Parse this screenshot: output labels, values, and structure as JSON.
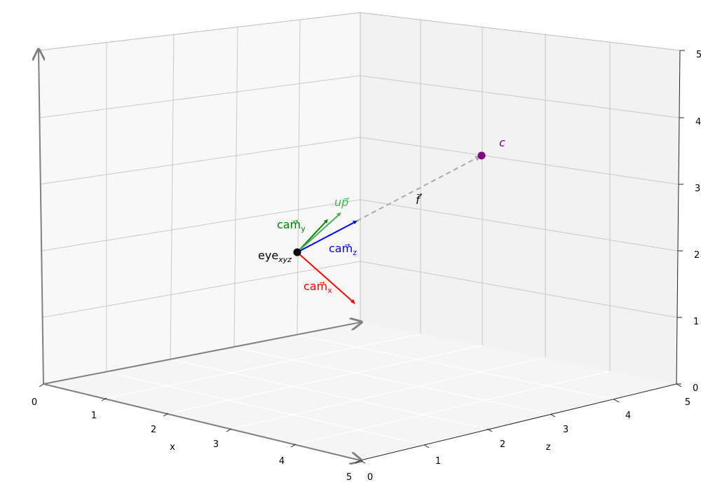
{
  "axes": {
    "x": {
      "name": "x",
      "ticks": [
        "0",
        "1",
        "2",
        "3",
        "4",
        "5"
      ]
    },
    "z": {
      "name": "z",
      "ticks": [
        "0",
        "1",
        "2",
        "3",
        "4",
        "5"
      ]
    },
    "y": {
      "ticks": [
        "0",
        "1",
        "2",
        "3",
        "4",
        "5"
      ]
    }
  },
  "labels": {
    "eye": {
      "main": "eye",
      "sub": "xyz"
    },
    "cam_x": {
      "main": "cam⃗",
      "sub": "x",
      "color": "#ff0000"
    },
    "cam_y": {
      "main": "cam⃗",
      "sub": "y",
      "color": "#008000"
    },
    "cam_z": {
      "main": "cam⃗",
      "sub": "z",
      "color": "#0000ff"
    },
    "up": {
      "text": "up⃗",
      "color": "#4caf50"
    },
    "f": {
      "text": "f⃗",
      "color": "#000000"
    },
    "c": {
      "text": "c",
      "color": "#800080"
    }
  },
  "colors": {
    "pane_left": "#f8f8f8",
    "pane_back": "#f2f2f2",
    "floor": "#f5f5f5",
    "grid": "#c8c8c8",
    "arrow_axis": "#808080",
    "f_line": "#aaaaaa"
  }
}
